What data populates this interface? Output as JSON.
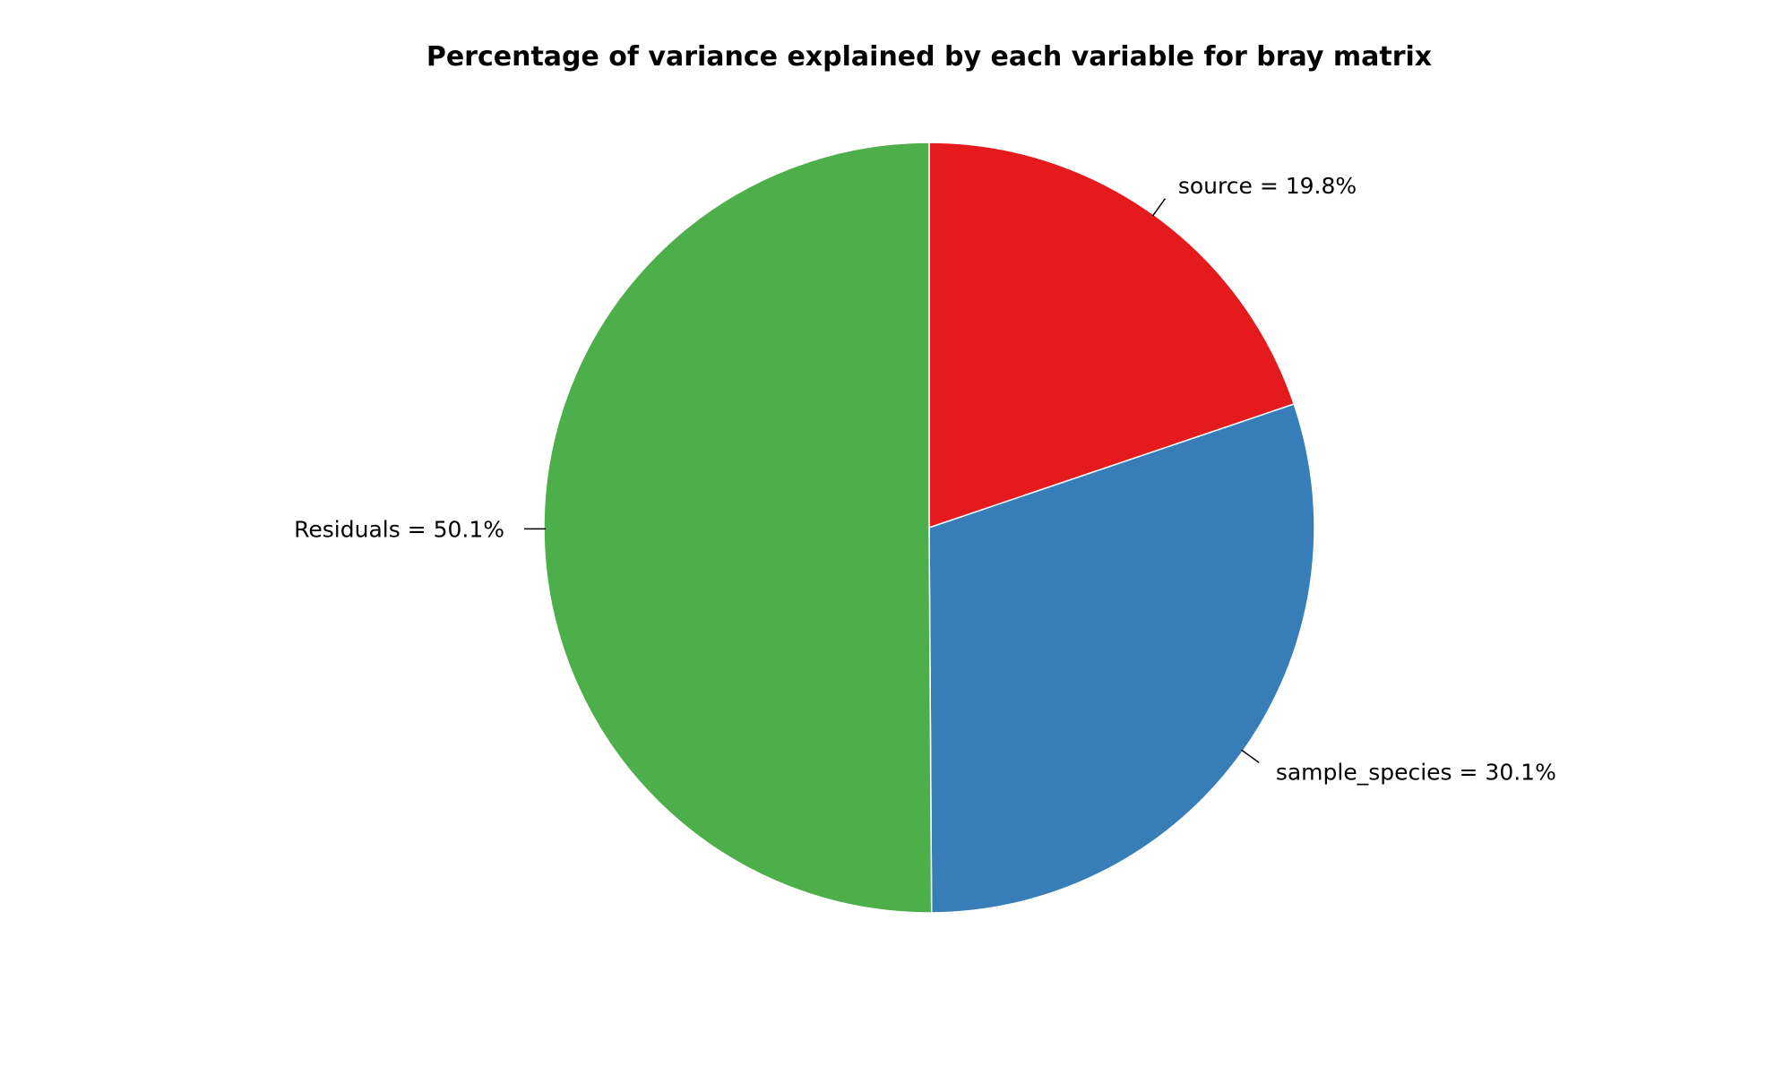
{
  "chart_data": {
    "type": "pie",
    "title": "Percentage of variance explained by each variable for bray matrix",
    "slices": [
      {
        "label": "source",
        "value": 19.8,
        "color": "#e41a1c",
        "text": "source = 19.8%"
      },
      {
        "label": "sample_species",
        "value": 30.1,
        "color": "#377eb8",
        "text": "sample_species = 30.1%"
      },
      {
        "label": "Residuals",
        "value": 50.1,
        "color": "#4daf4a",
        "text": "Residuals = 50.1%"
      }
    ],
    "start_angle": "12 o'clock",
    "direction": "clockwise",
    "legend": "none"
  }
}
